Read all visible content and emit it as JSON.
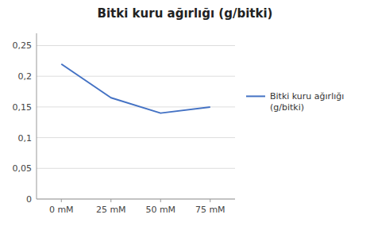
{
  "chart_data": {
    "type": "line",
    "title": "Bitki kuru ağırlığı (g/bitki)",
    "categories": [
      "0 mM",
      "25 mM",
      "50 mM",
      "75 mM"
    ],
    "series": [
      {
        "name": "Bitki kuru ağırlığı\n(g/bitki)",
        "color": "#4472C4",
        "values": [
          0.22,
          0.165,
          0.14,
          0.15
        ]
      }
    ],
    "ylim": [
      0,
      0.27
    ],
    "yticks": [
      0,
      {
        "value": 0.05,
        "label": "0,05"
      },
      {
        "value": 0.1,
        "label": "0,1"
      },
      {
        "value": 0.15,
        "label": "0,15"
      },
      {
        "value": 0.2,
        "label": "0,2"
      },
      {
        "value": 0.25,
        "label": "0,25"
      }
    ],
    "grid": true,
    "legend": "right"
  }
}
